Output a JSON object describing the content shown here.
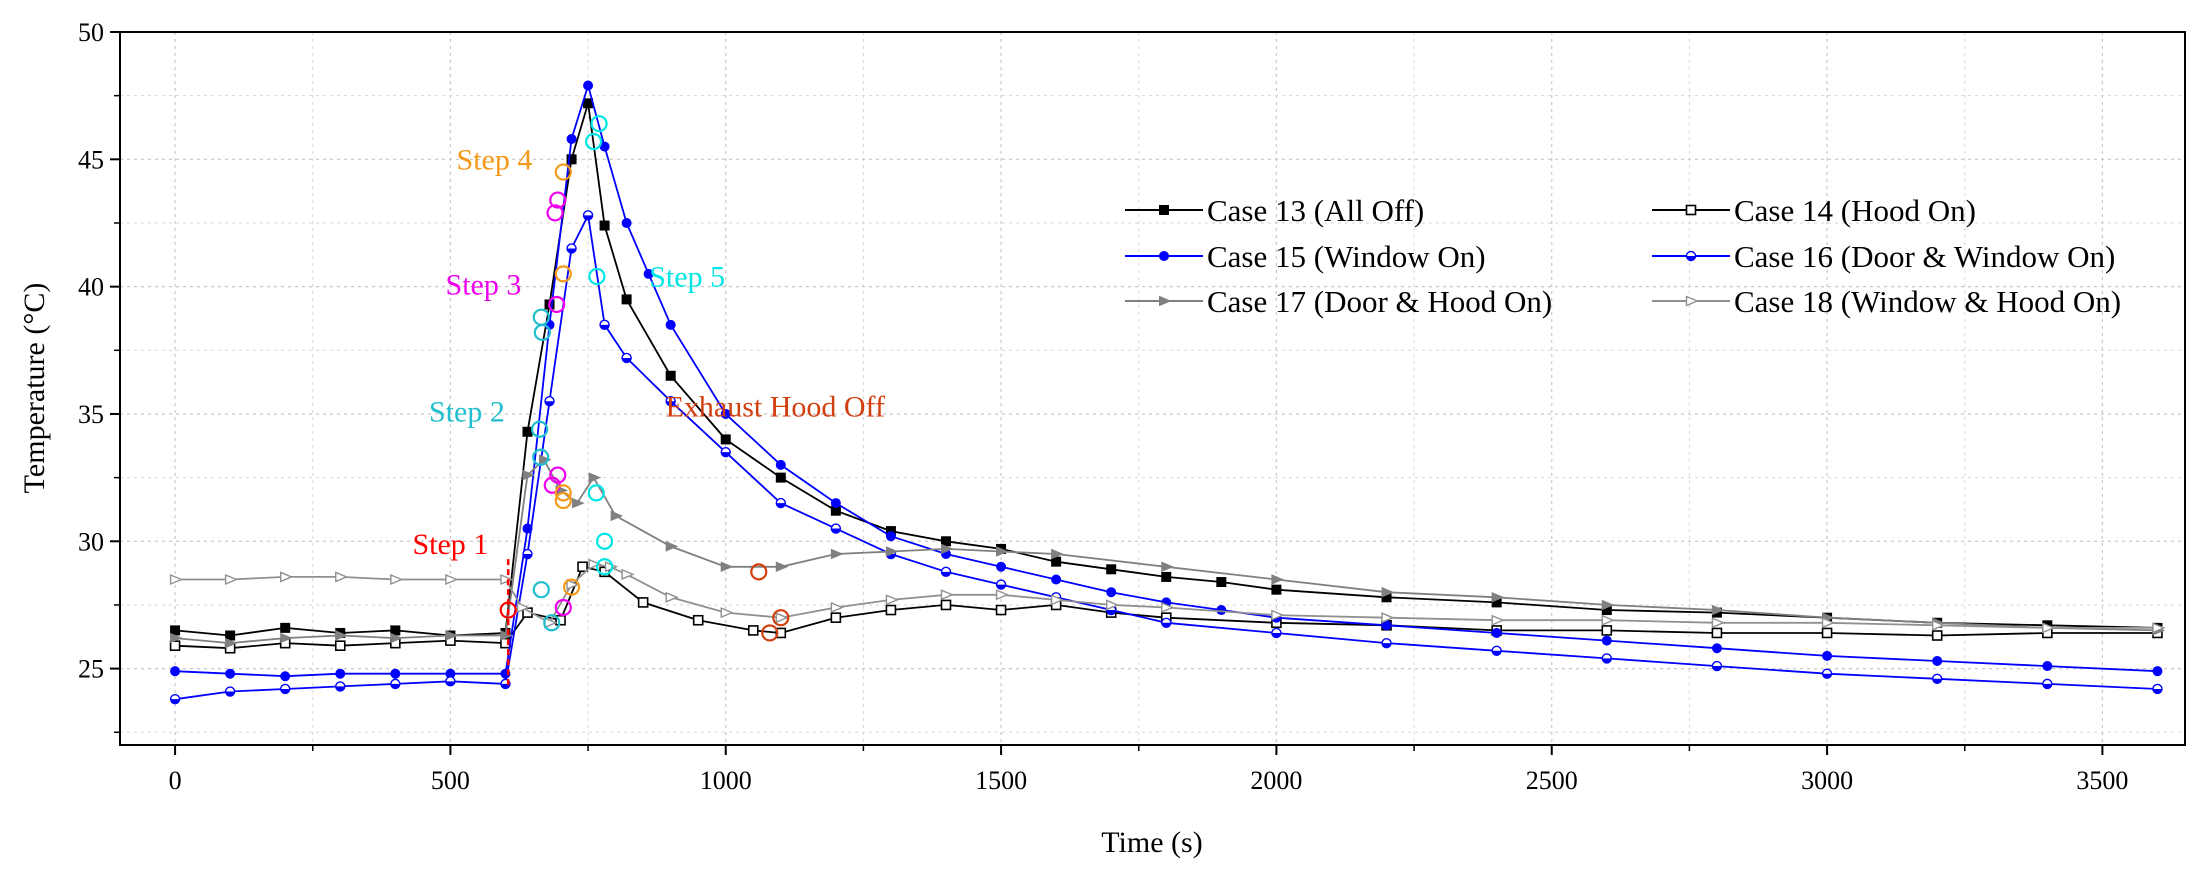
{
  "chart_data": {
    "type": "line",
    "xlabel": "Time (s)",
    "ylabel": "Temperature (°C)",
    "xlim": [
      -100,
      3650
    ],
    "ylim": [
      22,
      50
    ],
    "xticks": [
      0,
      500,
      1000,
      1500,
      2000,
      2500,
      3000,
      3500
    ],
    "yticks": [
      25,
      30,
      35,
      40,
      45,
      50
    ],
    "xtick_labels": [
      "0",
      "500",
      "1000",
      "1500",
      "2000",
      "2500",
      "3000",
      "3500"
    ],
    "ytick_labels": [
      "25",
      "30",
      "35",
      "40",
      "45",
      "50"
    ],
    "grid": true,
    "legend_position": "upper-right",
    "series": [
      {
        "name": "Case 13 (All Off)",
        "color": "#000000",
        "marker": "filled-square",
        "points": [
          [
            0,
            26.5
          ],
          [
            100,
            26.3
          ],
          [
            200,
            26.6
          ],
          [
            300,
            26.4
          ],
          [
            400,
            26.5
          ],
          [
            500,
            26.3
          ],
          [
            600,
            26.4
          ],
          [
            640,
            34.3
          ],
          [
            680,
            39.3
          ],
          [
            720,
            45.0
          ],
          [
            750,
            47.2
          ],
          [
            780,
            42.4
          ],
          [
            820,
            39.5
          ],
          [
            900,
            36.5
          ],
          [
            1000,
            34.0
          ],
          [
            1100,
            32.5
          ],
          [
            1200,
            31.2
          ],
          [
            1300,
            30.4
          ],
          [
            1400,
            30.0
          ],
          [
            1500,
            29.7
          ],
          [
            1600,
            29.2
          ],
          [
            1700,
            28.9
          ],
          [
            1800,
            28.6
          ],
          [
            1900,
            28.4
          ],
          [
            2000,
            28.1
          ],
          [
            2200,
            27.8
          ],
          [
            2400,
            27.6
          ],
          [
            2600,
            27.3
          ],
          [
            2800,
            27.2
          ],
          [
            3000,
            27.0
          ],
          [
            3200,
            26.8
          ],
          [
            3400,
            26.7
          ],
          [
            3600,
            26.6
          ]
        ]
      },
      {
        "name": "Case 14 (Hood On)",
        "color": "#000000",
        "marker": "open-square",
        "points": [
          [
            0,
            25.9
          ],
          [
            100,
            25.8
          ],
          [
            200,
            26.0
          ],
          [
            300,
            25.9
          ],
          [
            400,
            26.0
          ],
          [
            500,
            26.1
          ],
          [
            600,
            26.0
          ],
          [
            640,
            27.2
          ],
          [
            700,
            26.9
          ],
          [
            740,
            29.0
          ],
          [
            780,
            28.8
          ],
          [
            850,
            27.6
          ],
          [
            950,
            26.9
          ],
          [
            1050,
            26.5
          ],
          [
            1100,
            26.4
          ],
          [
            1200,
            27.0
          ],
          [
            1300,
            27.3
          ],
          [
            1400,
            27.5
          ],
          [
            1500,
            27.3
          ],
          [
            1600,
            27.5
          ],
          [
            1700,
            27.2
          ],
          [
            1800,
            27.0
          ],
          [
            2000,
            26.8
          ],
          [
            2200,
            26.7
          ],
          [
            2400,
            26.5
          ],
          [
            2600,
            26.5
          ],
          [
            2800,
            26.4
          ],
          [
            3000,
            26.4
          ],
          [
            3200,
            26.3
          ],
          [
            3400,
            26.4
          ],
          [
            3600,
            26.4
          ]
        ]
      },
      {
        "name": "Case 15 (Window On)",
        "color": "#0000ff",
        "marker": "filled-circle",
        "points": [
          [
            0,
            24.9
          ],
          [
            100,
            24.8
          ],
          [
            200,
            24.7
          ],
          [
            300,
            24.8
          ],
          [
            400,
            24.8
          ],
          [
            500,
            24.8
          ],
          [
            600,
            24.8
          ],
          [
            640,
            30.5
          ],
          [
            680,
            38.5
          ],
          [
            720,
            45.8
          ],
          [
            750,
            47.9
          ],
          [
            780,
            45.5
          ],
          [
            820,
            42.5
          ],
          [
            860,
            40.5
          ],
          [
            900,
            38.5
          ],
          [
            1000,
            35.0
          ],
          [
            1100,
            33.0
          ],
          [
            1200,
            31.5
          ],
          [
            1300,
            30.2
          ],
          [
            1400,
            29.5
          ],
          [
            1500,
            29.0
          ],
          [
            1600,
            28.5
          ],
          [
            1700,
            28.0
          ],
          [
            1800,
            27.6
          ],
          [
            1900,
            27.3
          ],
          [
            2000,
            27.0
          ],
          [
            2200,
            26.7
          ],
          [
            2400,
            26.4
          ],
          [
            2600,
            26.1
          ],
          [
            2800,
            25.8
          ],
          [
            3000,
            25.5
          ],
          [
            3200,
            25.3
          ],
          [
            3400,
            25.1
          ],
          [
            3600,
            24.9
          ]
        ]
      },
      {
        "name": "Case 16 (Door & Window On)",
        "color": "#0000ff",
        "marker": "half-circle",
        "points": [
          [
            0,
            23.8
          ],
          [
            100,
            24.1
          ],
          [
            200,
            24.2
          ],
          [
            300,
            24.3
          ],
          [
            400,
            24.4
          ],
          [
            500,
            24.5
          ],
          [
            600,
            24.4
          ],
          [
            640,
            29.5
          ],
          [
            680,
            35.5
          ],
          [
            720,
            41.5
          ],
          [
            750,
            42.8
          ],
          [
            780,
            38.5
          ],
          [
            820,
            37.2
          ],
          [
            900,
            35.5
          ],
          [
            1000,
            33.5
          ],
          [
            1100,
            31.5
          ],
          [
            1200,
            30.5
          ],
          [
            1300,
            29.5
          ],
          [
            1400,
            28.8
          ],
          [
            1500,
            28.3
          ],
          [
            1600,
            27.8
          ],
          [
            1700,
            27.3
          ],
          [
            1800,
            26.8
          ],
          [
            2000,
            26.4
          ],
          [
            2200,
            26.0
          ],
          [
            2400,
            25.7
          ],
          [
            2600,
            25.4
          ],
          [
            2800,
            25.1
          ],
          [
            3000,
            24.8
          ],
          [
            3200,
            24.6
          ],
          [
            3400,
            24.4
          ],
          [
            3600,
            24.2
          ]
        ]
      },
      {
        "name": "Case 17 (Door & Hood On)",
        "color": "#808080",
        "marker": "filled-triangle",
        "points": [
          [
            0,
            26.2
          ],
          [
            100,
            26.0
          ],
          [
            200,
            26.2
          ],
          [
            300,
            26.3
          ],
          [
            400,
            26.2
          ],
          [
            500,
            26.3
          ],
          [
            600,
            26.3
          ],
          [
            640,
            32.6
          ],
          [
            670,
            33.2
          ],
          [
            700,
            32.0
          ],
          [
            730,
            31.5
          ],
          [
            760,
            32.5
          ],
          [
            800,
            31.0
          ],
          [
            900,
            29.8
          ],
          [
            1000,
            29.0
          ],
          [
            1100,
            29.0
          ],
          [
            1200,
            29.5
          ],
          [
            1300,
            29.6
          ],
          [
            1400,
            29.7
          ],
          [
            1500,
            29.6
          ],
          [
            1600,
            29.5
          ],
          [
            1800,
            29.0
          ],
          [
            2000,
            28.5
          ],
          [
            2200,
            28.0
          ],
          [
            2400,
            27.8
          ],
          [
            2600,
            27.5
          ],
          [
            2800,
            27.3
          ],
          [
            3000,
            27.0
          ],
          [
            3200,
            26.8
          ],
          [
            3400,
            26.6
          ],
          [
            3600,
            26.5
          ]
        ]
      },
      {
        "name": "Case 18 (Window & Hood On)",
        "color": "#909090",
        "marker": "open-triangle",
        "points": [
          [
            0,
            28.5
          ],
          [
            100,
            28.5
          ],
          [
            200,
            28.6
          ],
          [
            300,
            28.6
          ],
          [
            400,
            28.5
          ],
          [
            500,
            28.5
          ],
          [
            600,
            28.5
          ],
          [
            630,
            27.4
          ],
          [
            680,
            26.8
          ],
          [
            720,
            28.3
          ],
          [
            760,
            29.1
          ],
          [
            790,
            29.0
          ],
          [
            820,
            28.7
          ],
          [
            900,
            27.8
          ],
          [
            1000,
            27.2
          ],
          [
            1100,
            27.0
          ],
          [
            1200,
            27.4
          ],
          [
            1300,
            27.7
          ],
          [
            1400,
            27.9
          ],
          [
            1500,
            27.9
          ],
          [
            1600,
            27.7
          ],
          [
            1700,
            27.5
          ],
          [
            1800,
            27.4
          ],
          [
            2000,
            27.1
          ],
          [
            2200,
            27.0
          ],
          [
            2400,
            26.9
          ],
          [
            2600,
            26.9
          ],
          [
            2800,
            26.8
          ],
          [
            3000,
            26.8
          ],
          [
            3200,
            26.7
          ],
          [
            3400,
            26.6
          ],
          [
            3600,
            26.6
          ]
        ]
      }
    ],
    "annotations": [
      {
        "text": "Step 1",
        "color": "#ff0000",
        "x": 500,
        "y": 29.5
      },
      {
        "text": "Step 2",
        "color": "#1fbfcf",
        "x": 530,
        "y": 34.7
      },
      {
        "text": "Step 3",
        "color": "#ee00ee",
        "x": 560,
        "y": 39.7
      },
      {
        "text": "Step 4",
        "color": "#f39a1c",
        "x": 580,
        "y": 44.6
      },
      {
        "text": "Step 5",
        "color": "#00e6e6",
        "x": 930,
        "y": 40.0
      },
      {
        "text": "Exhaust Hood Off",
        "color": "#d23f0f",
        "x": 1090,
        "y": 34.9
      }
    ],
    "step_markers": [
      {
        "step": "Step 1",
        "color": "#ff0000",
        "x": 605,
        "y": 27.3
      },
      {
        "step": "Step 2",
        "color": "#1fbfcf",
        "x": 665,
        "y": 38.8
      },
      {
        "step": "Step 2",
        "color": "#1fbfcf",
        "x": 667,
        "y": 38.2
      },
      {
        "step": "Step 2",
        "color": "#1fbfcf",
        "x": 662,
        "y": 34.4
      },
      {
        "step": "Step 2",
        "color": "#1fbfcf",
        "x": 664,
        "y": 33.3
      },
      {
        "step": "Step 2",
        "color": "#1fbfcf",
        "x": 665,
        "y": 28.1
      },
      {
        "step": "Step 2",
        "color": "#1fbfcf",
        "x": 684,
        "y": 26.8
      },
      {
        "step": "Step 3",
        "color": "#ee00ee",
        "x": 695,
        "y": 43.4
      },
      {
        "step": "Step 3",
        "color": "#ee00ee",
        "x": 690,
        "y": 42.9
      },
      {
        "step": "Step 3",
        "color": "#ee00ee",
        "x": 693,
        "y": 39.3
      },
      {
        "step": "Step 3",
        "color": "#ee00ee",
        "x": 685,
        "y": 32.2
      },
      {
        "step": "Step 3",
        "color": "#ee00ee",
        "x": 695,
        "y": 32.6
      },
      {
        "step": "Step 3",
        "color": "#ee00ee",
        "x": 705,
        "y": 27.4
      },
      {
        "step": "Step 4",
        "color": "#f39a1c",
        "x": 705,
        "y": 44.5
      },
      {
        "step": "Step 4",
        "color": "#f39a1c",
        "x": 705,
        "y": 40.5
      },
      {
        "step": "Step 4",
        "color": "#f39a1c",
        "x": 705,
        "y": 31.9
      },
      {
        "step": "Step 4",
        "color": "#f39a1c",
        "x": 705,
        "y": 31.6
      },
      {
        "step": "Step 4",
        "color": "#f39a1c",
        "x": 720,
        "y": 28.2
      },
      {
        "step": "Step 5",
        "color": "#00e6e6",
        "x": 770,
        "y": 46.4
      },
      {
        "step": "Step 5",
        "color": "#00e6e6",
        "x": 760,
        "y": 45.7
      },
      {
        "step": "Step 5",
        "color": "#00e6e6",
        "x": 766,
        "y": 40.4
      },
      {
        "step": "Step 5",
        "color": "#00e6e6",
        "x": 765,
        "y": 31.9
      },
      {
        "step": "Step 5",
        "color": "#00e6e6",
        "x": 780,
        "y": 30.0
      },
      {
        "step": "Step 5",
        "color": "#00e6e6",
        "x": 780,
        "y": 29.0
      },
      {
        "step": "Hood Off",
        "color": "#d23f0f",
        "x": 1060,
        "y": 28.8
      },
      {
        "step": "Hood Off",
        "color": "#d23f0f",
        "x": 1080,
        "y": 26.4
      },
      {
        "step": "Hood Off",
        "color": "#d23f0f",
        "x": 1100,
        "y": 27.0
      }
    ]
  }
}
